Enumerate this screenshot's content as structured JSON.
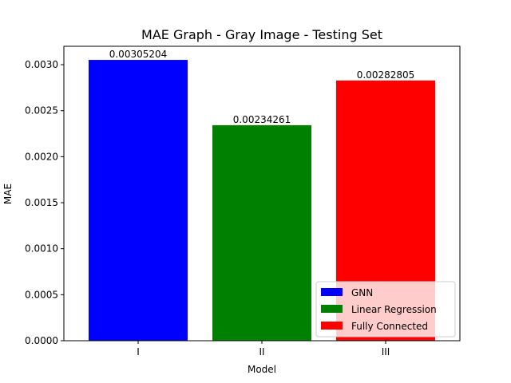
{
  "chart_data": {
    "type": "bar",
    "title": "MAE Graph - Gray Image - Testing Set",
    "xlabel": "Model",
    "ylabel": "MAE",
    "categories": [
      "I",
      "II",
      "III"
    ],
    "values": [
      0.00305204,
      0.00234261,
      0.00282805
    ],
    "data_labels": [
      "0.00305204",
      "0.00234261",
      "0.00282805"
    ],
    "colors": [
      "#0000ff",
      "#008000",
      "#ff0000"
    ],
    "legend": {
      "placement": "lower-right",
      "entries": [
        {
          "label": "GNN",
          "color": "#0000ff"
        },
        {
          "label": "Linear Regression",
          "color": "#008000"
        },
        {
          "label": "Fully Connected",
          "color": "#ff0000"
        }
      ]
    },
    "ylim": [
      0,
      0.0032
    ],
    "yticks": [
      {
        "value": 0.0,
        "label": "0.0000"
      },
      {
        "value": 0.0005,
        "label": "0.0005"
      },
      {
        "value": 0.001,
        "label": "0.0010"
      },
      {
        "value": 0.0015,
        "label": "0.0015"
      },
      {
        "value": 0.002,
        "label": "0.0020"
      },
      {
        "value": 0.0025,
        "label": "0.0025"
      },
      {
        "value": 0.003,
        "label": "0.0030"
      }
    ],
    "grid": false
  }
}
